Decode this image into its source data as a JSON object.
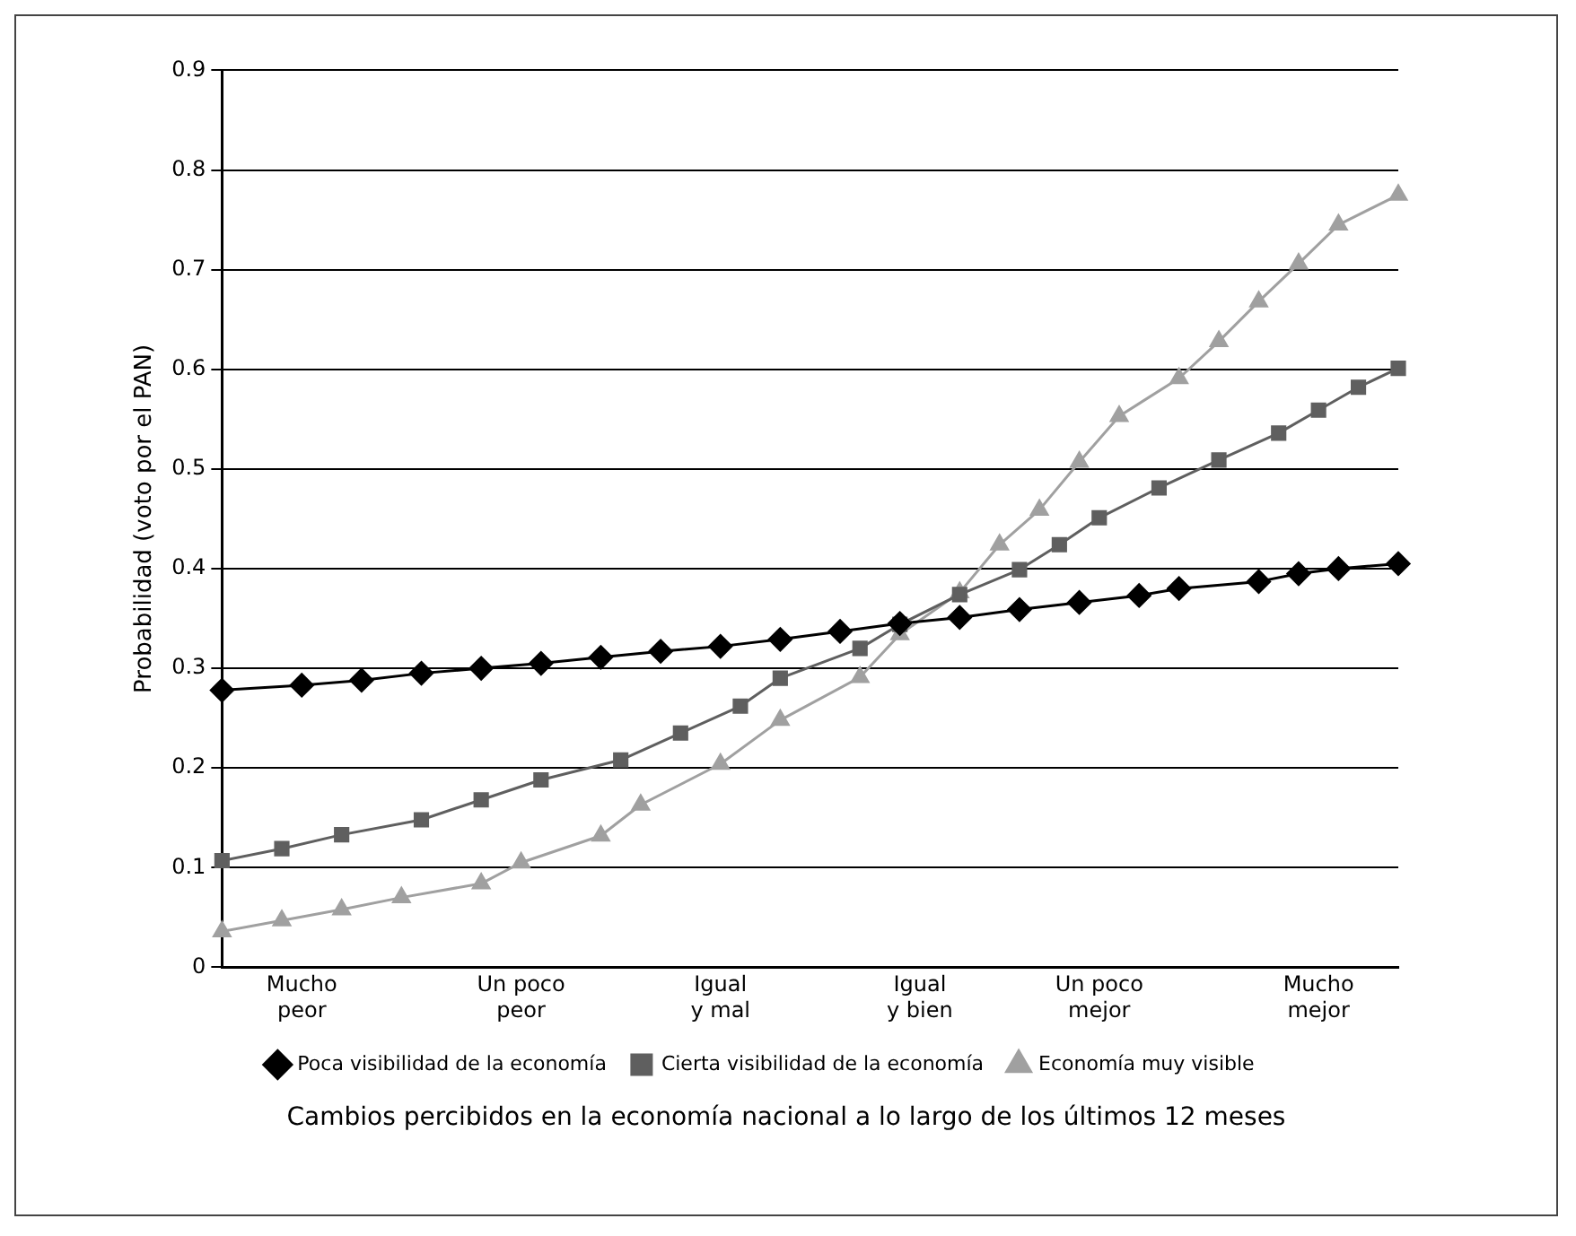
{
  "chart_data": {
    "type": "line",
    "xlabel": "Cambios percibidos en la economía nacional a lo largo de los últimos 12 meses",
    "ylabel": "Probabilidad (voto por el PAN)",
    "categories": [
      null,
      null,
      null,
      null,
      "Mucho\npeor",
      null,
      null,
      null,
      null,
      null,
      null,
      null,
      null,
      null,
      null,
      "Un poco\npeor",
      null,
      null,
      null,
      null,
      null,
      null,
      null,
      null,
      null,
      "Igual\ny mal",
      null,
      null,
      null,
      null,
      null,
      null,
      null,
      null,
      null,
      "Igual\ny bien",
      null,
      null,
      null,
      null,
      null,
      null,
      null,
      null,
      "Un poco\nmejor",
      null,
      null,
      null,
      null,
      null,
      null,
      null,
      null,
      null,
      null,
      "Mucho\nmejor",
      null,
      null,
      null,
      null
    ],
    "ylim": [
      0,
      0.9
    ],
    "yticks": [
      0,
      0.1,
      0.2,
      0.3,
      0.4,
      0.5,
      0.6,
      0.7,
      0.8,
      0.9
    ],
    "grid": "y",
    "legend": "bottom",
    "line_style": "solid",
    "series": [
      {
        "name": "Poca visibilidad de la economía",
        "color": "#000000",
        "marker": "diamond",
        "values": [
          0.278,
          null,
          null,
          null,
          0.283,
          null,
          null,
          0.288,
          null,
          null,
          0.295,
          null,
          null,
          0.3,
          null,
          null,
          0.305,
          null,
          null,
          0.311,
          null,
          null,
          0.317,
          null,
          null,
          0.322,
          null,
          null,
          0.329,
          null,
          null,
          0.337,
          null,
          null,
          0.345,
          null,
          null,
          0.351,
          null,
          null,
          0.359,
          null,
          null,
          0.366,
          null,
          null,
          0.373,
          null,
          0.38,
          null,
          null,
          null,
          0.387,
          null,
          0.395,
          null,
          0.4,
          null,
          null,
          0.405
        ]
      },
      {
        "name": "Cierta visibilidad de la economía",
        "color": "#5f5f5f",
        "marker": "square",
        "values": [
          0.107,
          null,
          null,
          0.119,
          null,
          null,
          0.133,
          null,
          null,
          null,
          0.148,
          null,
          null,
          0.168,
          null,
          null,
          0.188,
          null,
          null,
          null,
          0.208,
          null,
          null,
          0.235,
          null,
          null,
          0.262,
          null,
          0.29,
          null,
          null,
          null,
          0.32,
          null,
          0.344,
          null,
          null,
          0.374,
          null,
          null,
          0.399,
          null,
          0.424,
          null,
          0.451,
          null,
          null,
          0.481,
          null,
          null,
          0.509,
          null,
          null,
          0.536,
          null,
          0.559,
          null,
          0.582,
          null,
          0.601
        ]
      },
      {
        "name": "Economía muy visible",
        "color": "#a0a0a0",
        "marker": "triangle",
        "values": [
          0.036,
          null,
          null,
          0.047,
          null,
          null,
          0.058,
          null,
          null,
          0.07,
          null,
          null,
          null,
          0.084,
          null,
          0.105,
          null,
          null,
          null,
          0.132,
          null,
          0.163,
          null,
          null,
          null,
          0.204,
          null,
          null,
          0.248,
          null,
          null,
          null,
          0.291,
          null,
          0.334,
          null,
          null,
          0.376,
          null,
          0.424,
          null,
          0.459,
          null,
          0.507,
          null,
          0.553,
          null,
          null,
          0.591,
          null,
          0.628,
          null,
          0.668,
          null,
          0.706,
          null,
          0.745,
          null,
          null,
          0.775
        ]
      }
    ]
  }
}
